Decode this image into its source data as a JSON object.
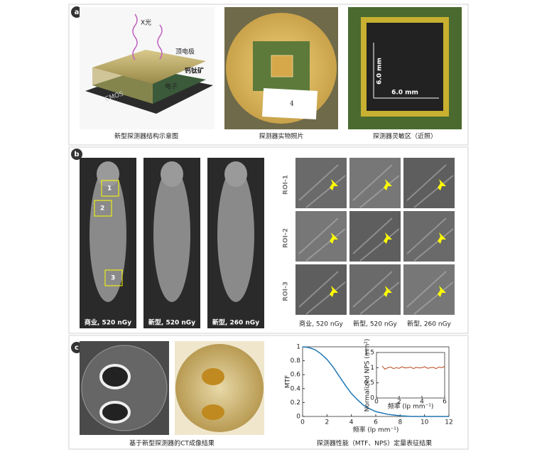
{
  "panel_a": {
    "label": "a",
    "schematic": {
      "xray": "X光",
      "top_electrode": "顶电极",
      "perovskite": "钙钛矿",
      "electron": "电子",
      "cmos": "CMOS"
    },
    "photo_label": "4",
    "dim_v": "6.0 mm",
    "dim_h": "6.0 mm",
    "captions": [
      "新型探测器结构示意图",
      "探测器实物照片",
      "探测器灵敏区（近照）"
    ]
  },
  "panel_b": {
    "label": "b",
    "roi_marks": [
      "1",
      "2",
      "3"
    ],
    "image_captions": [
      "商业, 520 nGy",
      "新型, 520 nGy",
      "新型, 260 nGy"
    ],
    "roi_rows": [
      "ROI-1",
      "ROI-2",
      "ROI-3"
    ],
    "roi_captions": [
      "商业, 520 nGy",
      "新型, 520 nGy",
      "新型, 260 nGy"
    ]
  },
  "panel_c": {
    "label": "c",
    "captions": [
      "基于新型探测器的CT成像结果",
      "探测器性能（MTF、NPS）定量表征结果"
    ]
  },
  "chart_data": [
    {
      "type": "line",
      "xlabel": "频率 (lp mm⁻¹)",
      "ylabel": "MTF",
      "xlim": [
        0,
        12
      ],
      "ylim": [
        0,
        1
      ],
      "xticks": [
        0,
        2,
        4,
        6,
        8,
        10,
        12
      ],
      "yticks": [
        0,
        0.2,
        0.4,
        0.6,
        0.8,
        1
      ],
      "x": [
        0,
        0.5,
        1,
        1.5,
        2,
        2.5,
        3,
        3.5,
        4,
        4.5,
        5,
        5.5,
        6,
        6.5,
        7,
        7.5,
        8,
        8.5,
        9,
        9.5,
        10,
        10.5,
        11,
        11.5,
        12
      ],
      "values": [
        1,
        0.99,
        0.96,
        0.9,
        0.82,
        0.71,
        0.58,
        0.45,
        0.33,
        0.24,
        0.16,
        0.11,
        0.07,
        0.05,
        0.03,
        0.02,
        0.01,
        0.005,
        0,
        0,
        0,
        0,
        0,
        0,
        0
      ],
      "color": "#1f77b4"
    },
    {
      "type": "line",
      "xlabel": "频率 (lp mm⁻¹)",
      "ylabel": "Normalized NPS (mm²)",
      "xlim": [
        0,
        6
      ],
      "ylim": [
        0,
        1.5
      ],
      "xticks": [
        0,
        2,
        4,
        6
      ],
      "yticks": [
        0,
        0.5,
        1,
        1.5
      ],
      "x": [
        0.5,
        0.75,
        1,
        1.25,
        1.5,
        1.75,
        2,
        2.25,
        2.5,
        2.75,
        3,
        3.25,
        3.5,
        3.75,
        4,
        4.25,
        4.5,
        4.75,
        5,
        5.25,
        5.5,
        5.75,
        6
      ],
      "values": [
        1.05,
        0.95,
        1.0,
        1.02,
        0.97,
        1.0,
        0.98,
        1.03,
        0.99,
        1.0,
        1.02,
        0.97,
        1.01,
        0.99,
        1.0,
        1.03,
        0.98,
        1.0,
        1.01,
        0.97,
        1.02,
        1.0,
        1.04
      ],
      "color": "#b5451b"
    }
  ]
}
